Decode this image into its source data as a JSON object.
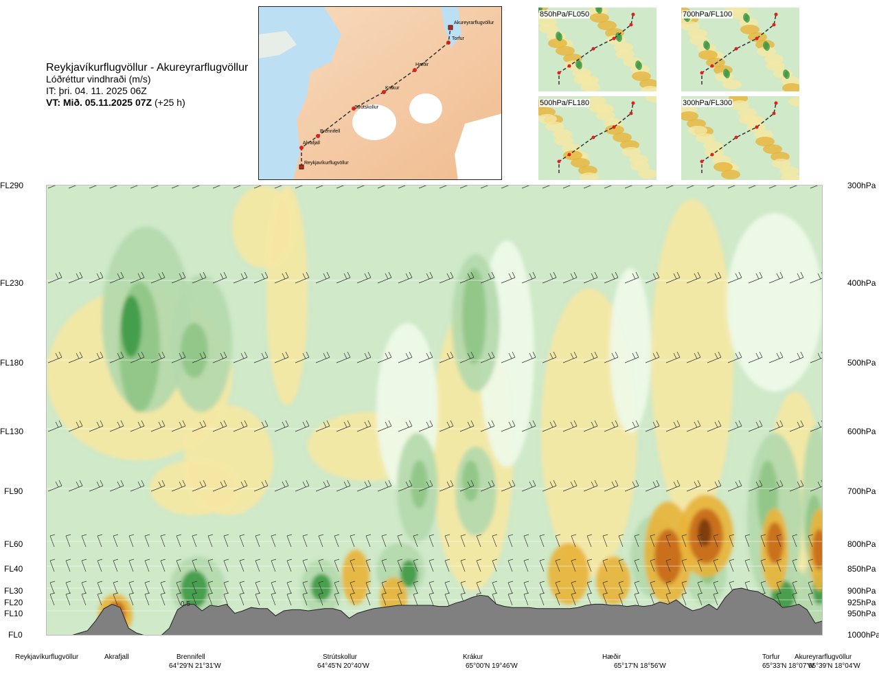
{
  "header": {
    "route": "Reykjavíkurflugvöllur - Akureyrarflugvöllur",
    "quantity": "Lóðréttur vindhraði (m/s)",
    "issue": "IT: þri. 04. 11. 2025 06Z",
    "valid_bold": "VT: Mið. 05.11.2025 07Z",
    "valid_suffix": " (+25 h)"
  },
  "route_map": {
    "waypoints": [
      {
        "name": "Akureyrarflugvöllur",
        "end": true
      },
      {
        "name": "Torfur",
        "end": false
      },
      {
        "name": "Hæðir",
        "end": false
      },
      {
        "name": "Krákur",
        "end": false
      },
      {
        "name": "Strútskollur",
        "end": false
      },
      {
        "name": "Brennifell",
        "end": false
      },
      {
        "name": "Akrafjall",
        "end": false
      },
      {
        "name": "Reykjavíkurflugvöllur",
        "end": true
      }
    ]
  },
  "mini_maps": [
    {
      "label": "850hPa/FL050"
    },
    {
      "label": "700hPa/FL100"
    },
    {
      "label": "500hPa/FL180"
    },
    {
      "label": "300hPa/FL300"
    }
  ],
  "chart_data": {
    "type": "heatmap",
    "title": "Reykjavíkurflugvöllur - Akureyrarflugvöllur",
    "quantity": "Lóðréttur vindhraði (m/s)",
    "y_left_ticks": [
      {
        "label": "FL290",
        "fl": 290
      },
      {
        "label": "FL230",
        "fl": 230
      },
      {
        "label": "FL180",
        "fl": 180
      },
      {
        "label": "FL130",
        "fl": 130
      },
      {
        "label": "FL90",
        "fl": 90
      },
      {
        "label": "FL60",
        "fl": 60
      },
      {
        "label": "FL40",
        "fl": 40
      },
      {
        "label": "FL30",
        "fl": 30
      },
      {
        "label": "FL20",
        "fl": 20
      },
      {
        "label": "FL10",
        "fl": 10
      },
      {
        "label": "FL0",
        "fl": 0
      }
    ],
    "y_right_ticks": [
      {
        "label": "300hPa",
        "hpa": 300
      },
      {
        "label": "400hPa",
        "hpa": 400
      },
      {
        "label": "500hPa",
        "hpa": 500
      },
      {
        "label": "600hPa",
        "hpa": 600
      },
      {
        "label": "700hPa",
        "hpa": 700
      },
      {
        "label": "800hPa",
        "hpa": 800
      },
      {
        "label": "850hPa",
        "hpa": 850
      },
      {
        "label": "900hPa",
        "hpa": 900
      },
      {
        "label": "925hPa",
        "hpa": 925
      },
      {
        "label": "950hPa",
        "hpa": 950
      },
      {
        "label": "1000hPa",
        "hpa": 1000
      }
    ],
    "x_stations": [
      {
        "name": "Reykjavíkurflugvöllur",
        "coord": ""
      },
      {
        "name": "Akrafjall",
        "coord": ""
      },
      {
        "name": "Brennifell",
        "coord": "64°29'N 21°31'W"
      },
      {
        "name": "Strútskollur",
        "coord": "64°45'N 20°40'W"
      },
      {
        "name": "Krákur",
        "coord": "65°00'N 19°46'W"
      },
      {
        "name": "Hæðir",
        "coord": "65°17'N 18°56'W"
      },
      {
        "name": "Torfur",
        "coord": "65°33'N 18°07'W"
      },
      {
        "name": "Akureyrarflugvöllur",
        "coord": "65°39'N 18°04'W"
      }
    ],
    "annotations": [
      "0.5"
    ],
    "terrain_fl": [
      0,
      0,
      0,
      0,
      1,
      2,
      6,
      12,
      16,
      13,
      3,
      1,
      0,
      0,
      0,
      3,
      11,
      16,
      16,
      10,
      15,
      14,
      16,
      9,
      10,
      13,
      12,
      12,
      8,
      10,
      11,
      11,
      10,
      11,
      12,
      12,
      10,
      7,
      9,
      10,
      12,
      13,
      14,
      15,
      15,
      15,
      15,
      15,
      14,
      14,
      17,
      19,
      22,
      24,
      23,
      16,
      14,
      13,
      13,
      13,
      12,
      12,
      12,
      12,
      12,
      13,
      15,
      16,
      16,
      15,
      15,
      14,
      15,
      14,
      15,
      18,
      16,
      20,
      14,
      10,
      12,
      16,
      11,
      22,
      29,
      30,
      28,
      27,
      23,
      20,
      13,
      14,
      16,
      11,
      5,
      6
    ],
    "colors": {
      "strong_up": "#7a3a10",
      "mod_up": "#c86a1a",
      "weak_up": "#e8b43a",
      "slight_up": "#f5e7a3",
      "neutral": "#eefae8",
      "slight_down": "#cfe9c9",
      "weak_down": "#b4d9ac",
      "mod_down": "#8fc685",
      "strong_down": "#3f9a45",
      "terrain": "#808080",
      "waypoint": "#e0201e"
    }
  }
}
